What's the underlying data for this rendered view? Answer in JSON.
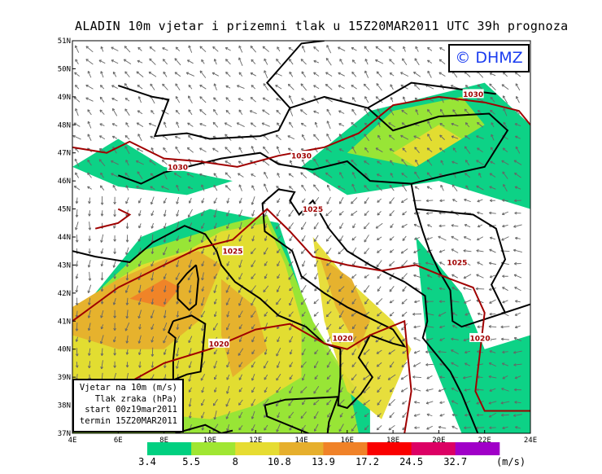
{
  "title": "ALADIN 10m vjetar i prizemni tlak u 15Z20MAR2011 UTC 39h prognoza",
  "logo": "© DHMZ",
  "info_box": {
    "line1": "Vjetar na 10m (m/s)",
    "line2": "Tlak zraka (hPa)",
    "line3": "start 00z19mar2011",
    "line4": "termin 15Z20MAR2011"
  },
  "map": {
    "lon_range": [
      4,
      24
    ],
    "lat_range": [
      37,
      51
    ],
    "lon_ticks": [
      "4E",
      "6E",
      "8E",
      "10E",
      "12E",
      "14E",
      "16E",
      "18E",
      "20E",
      "22E",
      "24E"
    ],
    "lat_ticks": [
      "51N",
      "50N",
      "49N",
      "48N",
      "47N",
      "46N",
      "45N",
      "44N",
      "43N",
      "42N",
      "41N",
      "40N",
      "39N",
      "38N",
      "37N"
    ],
    "isobar_color": "#a00000",
    "isobar_labels": [
      "1030",
      "1030",
      "1030",
      "1025",
      "1025",
      "1025",
      "1020",
      "1020",
      "1020"
    ]
  },
  "colorbar": {
    "colors": [
      "#00d080",
      "#a0e632",
      "#e6dc32",
      "#e6af2d",
      "#f08228",
      "#fa0000",
      "#dc0064",
      "#a000c8"
    ],
    "labels": [
      "3.4",
      "5.5",
      "8",
      "10.8",
      "13.9",
      "17.2",
      "24.5",
      "32.7"
    ],
    "unit": "(m/s)"
  }
}
